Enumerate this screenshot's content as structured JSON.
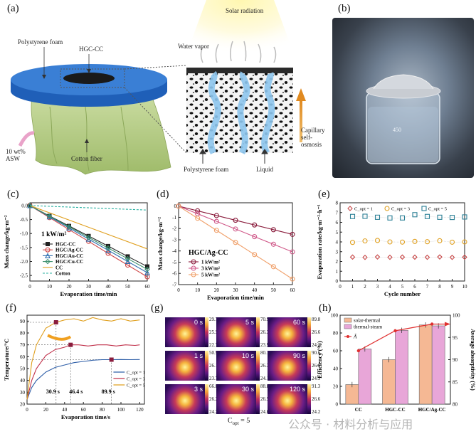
{
  "panels": {
    "a": "(a)",
    "b": "(b)",
    "c": "(c)",
    "d": "(d)",
    "e": "(e)",
    "f": "(f)",
    "g": "(g)",
    "h": "(h)"
  },
  "panel_a": {
    "solar_radiation": "Solar radiation",
    "water_vapor": "Water vapor",
    "polystyrene_foam_top": "Polystyrene foam",
    "hgc_cc": "HGC-CC",
    "asw": "10 wt% ASW",
    "cotton_fiber": "Cotton fiber",
    "polystyrene_foam_bottom": "Polystyrene foam",
    "liquid": "Liquid",
    "capillary": "Capillary self-osmosis"
  },
  "panel_b": {
    "beaker_mark": "450"
  },
  "chart_data": [
    {
      "id": "c",
      "type": "line",
      "xlabel": "Evaporation time/min",
      "ylabel": "Mass change/kg·m⁻²",
      "xlim": [
        0,
        60
      ],
      "ylim": [
        -2.7,
        0.1
      ],
      "xticks": [
        0,
        10,
        20,
        30,
        40,
        50,
        60
      ],
      "yticks": [
        0.0,
        -0.5,
        -1.0,
        -1.5,
        -2.0,
        -2.5
      ],
      "ytick_labels": [
        "0.0",
        "-0.5",
        "-1.0",
        "-1.5",
        "-2.0",
        "-2.5"
      ],
      "annotation": "1 kW/m²",
      "series": [
        {
          "name": "HGC-CC",
          "color": "#222222",
          "marker": "square",
          "x": [
            0,
            10,
            20,
            30,
            40,
            50,
            60
          ],
          "values": [
            0,
            -0.37,
            -0.73,
            -1.09,
            -1.45,
            -1.82,
            -2.18
          ]
        },
        {
          "name": "HGC/Ag-CC",
          "color": "#d04848",
          "marker": "circle-open",
          "x": [
            0,
            10,
            20,
            30,
            40,
            50,
            60
          ],
          "values": [
            0,
            -0.43,
            -0.86,
            -1.28,
            -1.71,
            -2.13,
            -2.55
          ]
        },
        {
          "name": "HGC/Au-CC",
          "color": "#2f6fb0",
          "marker": "triangle-open",
          "x": [
            0,
            10,
            20,
            30,
            40,
            50,
            60
          ],
          "values": [
            0,
            -0.4,
            -0.8,
            -1.2,
            -1.6,
            -2.0,
            -2.4
          ]
        },
        {
          "name": "HGC/Cu-CC",
          "color": "#3a8f6c",
          "marker": "diamond-open",
          "x": [
            0,
            10,
            20,
            30,
            40,
            50,
            60
          ],
          "values": [
            0,
            -0.38,
            -0.76,
            -1.14,
            -1.52,
            -1.9,
            -2.28
          ]
        },
        {
          "name": "CC",
          "color": "#e0a020",
          "marker": "none",
          "x": [
            0,
            60
          ],
          "values": [
            0,
            -1.55
          ]
        },
        {
          "name": "Cotton",
          "color": "#2ab0a0",
          "marker": "none",
          "dashed": true,
          "x": [
            0,
            60
          ],
          "values": [
            0,
            -0.16
          ]
        }
      ]
    },
    {
      "id": "d",
      "type": "line",
      "xlabel": "Evaporation time/min",
      "ylabel": "Mass change/kg·m⁻²",
      "xlim": [
        0,
        60
      ],
      "ylim": [
        -7,
        0.3
      ],
      "xticks": [
        0,
        10,
        20,
        30,
        40,
        50,
        60
      ],
      "yticks": [
        0,
        -1,
        -2,
        -3,
        -4,
        -5,
        -6,
        -7
      ],
      "ytick_labels": [
        "0",
        "-1",
        "-2",
        "-3",
        "-4",
        "-5",
        "-6",
        "-7"
      ],
      "title": "HGC/Ag-CC",
      "series": [
        {
          "name": "1 kW/m²",
          "color": "#8a1c3c",
          "x": [
            0,
            10,
            20,
            30,
            40,
            50,
            60
          ],
          "values": [
            0,
            -0.42,
            -0.84,
            -1.26,
            -1.68,
            -2.1,
            -2.52
          ]
        },
        {
          "name": "3 kW/m²",
          "color": "#d05a8a",
          "x": [
            0,
            10,
            20,
            30,
            40,
            50,
            60
          ],
          "values": [
            0,
            -0.68,
            -1.36,
            -2.04,
            -2.72,
            -3.4,
            -4.08
          ]
        },
        {
          "name": "5 kW/m²",
          "color": "#f0a06a",
          "x": [
            0,
            10,
            20,
            30,
            40,
            50,
            60
          ],
          "values": [
            0,
            -1.08,
            -2.16,
            -3.24,
            -4.32,
            -5.4,
            -6.5
          ]
        }
      ]
    },
    {
      "id": "e",
      "type": "scatter",
      "xlabel": "Cycle number",
      "ylabel": "Evaporation rate/kg·m⁻²·h⁻¹",
      "xlim": [
        0,
        10
      ],
      "ylim": [
        0,
        8
      ],
      "xticks": [
        0,
        1,
        2,
        3,
        4,
        5,
        6,
        7,
        8,
        9,
        10
      ],
      "yticks": [
        0,
        1,
        2,
        3,
        4,
        5,
        6,
        7,
        8
      ],
      "ytick_labels": [
        "0",
        "1",
        "2",
        "3",
        "4",
        "5",
        "6",
        "7",
        "8"
      ],
      "series": [
        {
          "name": "C_opt = 1",
          "color": "#c84a4a",
          "marker": "diamond-open",
          "x": [
            1,
            2,
            3,
            4,
            5,
            6,
            7,
            8,
            9,
            10
          ],
          "values": [
            2.45,
            2.42,
            2.46,
            2.43,
            2.45,
            2.44,
            2.43,
            2.46,
            2.42,
            2.44
          ]
        },
        {
          "name": "C_opt = 3",
          "color": "#e0a020",
          "marker": "circle-open",
          "x": [
            1,
            2,
            3,
            4,
            5,
            6,
            7,
            8,
            9,
            10
          ],
          "values": [
            3.95,
            4.1,
            4.15,
            4.0,
            3.98,
            4.05,
            4.02,
            4.12,
            3.97,
            4.0
          ]
        },
        {
          "name": "C_opt = 5",
          "color": "#2a7f95",
          "marker": "square-open",
          "x": [
            1,
            2,
            3,
            4,
            5,
            6,
            7,
            8,
            9,
            10
          ],
          "values": [
            6.6,
            6.62,
            6.52,
            6.45,
            6.45,
            6.78,
            6.6,
            6.52,
            6.5,
            6.55
          ]
        }
      ]
    },
    {
      "id": "f",
      "type": "line",
      "xlabel": "Evaporation time/s",
      "ylabel": "Temperature/°C",
      "xlim": [
        0,
        125
      ],
      "ylim": [
        20,
        95
      ],
      "xticks": [
        0,
        20,
        40,
        60,
        80,
        100,
        120
      ],
      "yticks": [
        20,
        30,
        40,
        50,
        60,
        70,
        80,
        90
      ],
      "ytick_labels": [
        "20",
        "30",
        "40",
        "50",
        "60",
        "70",
        "80",
        "90"
      ],
      "annotations": [
        "30.9 s",
        "46.4 s",
        "89.9 s"
      ],
      "series": [
        {
          "name": "C_opt = 1",
          "color": "#2f5fa8",
          "x": [
            0,
            5,
            10,
            20,
            30,
            40,
            50,
            60,
            70,
            80,
            90,
            100,
            110,
            120
          ],
          "values": [
            24,
            34,
            40,
            47,
            51,
            53,
            55,
            56,
            57,
            57.5,
            57.5,
            57.6,
            57.5,
            57.6
          ]
        },
        {
          "name": "C_opt = 3",
          "color": "#c0304a",
          "x": [
            0,
            5,
            10,
            20,
            30,
            40,
            46.4,
            55,
            65,
            75,
            85,
            95,
            105,
            115,
            120
          ],
          "values": [
            24,
            40,
            50,
            61,
            66,
            68,
            70,
            70,
            69,
            70,
            70,
            69,
            70,
            69.5,
            70
          ]
        },
        {
          "name": "C_opt = 5",
          "color": "#e0a020",
          "x": [
            0,
            5,
            10,
            20,
            30.9,
            40,
            50,
            60,
            70,
            80,
            90,
            100,
            110,
            120
          ],
          "values": [
            24,
            55,
            70,
            84,
            89,
            91,
            92,
            90,
            93,
            91,
            90,
            92,
            90,
            91
          ]
        }
      ]
    },
    {
      "id": "h",
      "type": "bar",
      "categories": [
        "CC",
        "HGC-CC",
        "HGC/Ag-CC"
      ],
      "ylabel": "Efficiency (%)",
      "y2label": "Average absorptivity (%)",
      "ylim": [
        0,
        100
      ],
      "y2lim": [
        80,
        100
      ],
      "yticks": [
        0,
        20,
        40,
        60,
        80,
        100
      ],
      "y2ticks": [
        80,
        85,
        90,
        95,
        100
      ],
      "series": [
        {
          "name": "solar-thermal",
          "color": "#f5b894",
          "values": [
            22,
            50,
            89
          ]
        },
        {
          "name": "thermal-steam",
          "color": "#e8a6d8",
          "values": [
            62,
            83,
            88
          ]
        },
        {
          "name": "Ā",
          "color": "#e03030",
          "axis": "right",
          "values": [
            92,
            96.5,
            98
          ]
        }
      ]
    }
  ],
  "panel_g": {
    "caption": "C",
    "caption_sub": "opt",
    "caption_eq": " = 5",
    "cells": [
      {
        "time": "0 s",
        "max": "29.7",
        "mid": "25.5",
        "min": "22.7"
      },
      {
        "time": "5 s",
        "max": "70.9",
        "mid": "26.3",
        "min": "23.9"
      },
      {
        "time": "60 s",
        "max": "89.8",
        "mid": "26.6",
        "min": "24.2"
      },
      {
        "time": "1 s",
        "max": "50.9",
        "mid": "26.1",
        "min": "23.7"
      },
      {
        "time": "10 s",
        "max": "80.1",
        "mid": "26.3",
        "min": "24.1"
      },
      {
        "time": "90 s",
        "max": "90.6",
        "mid": "26.6",
        "min": "24.3"
      },
      {
        "time": "3 s",
        "max": "66.8",
        "mid": "26.2",
        "min": "24.2"
      },
      {
        "time": "30 s",
        "max": "88.8",
        "mid": "26.5",
        "min": "24.0"
      },
      {
        "time": "120 s",
        "max": "91.3",
        "mid": "26.6",
        "min": "24.2"
      }
    ]
  },
  "watermark": "公众号 · 材料分析与应用"
}
